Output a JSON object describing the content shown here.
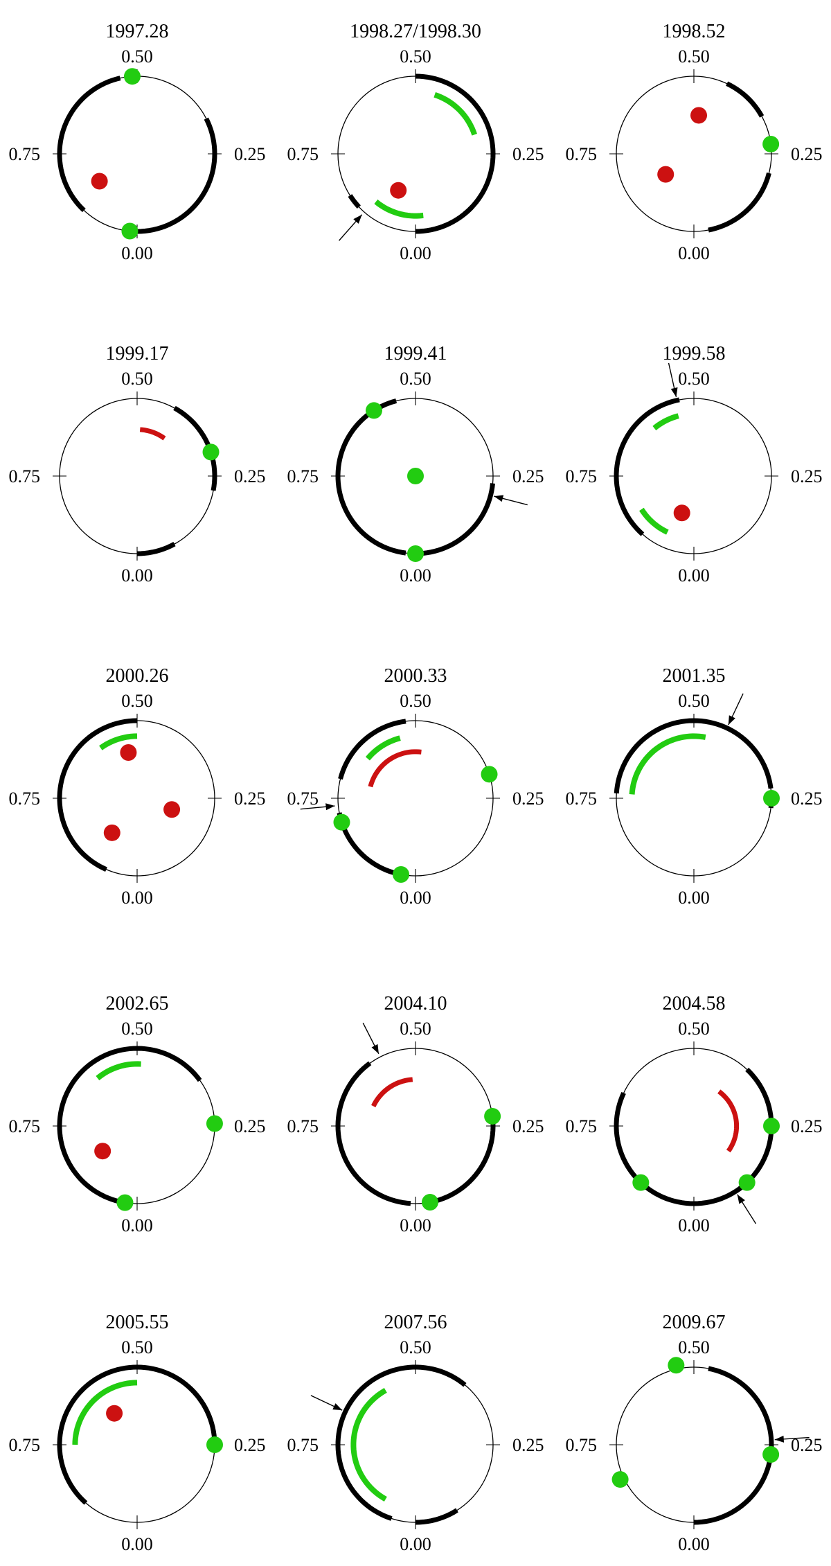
{
  "colors": {
    "ring": "#000000",
    "green": "#22cc11",
    "red": "#cc1111",
    "thin": "#000000"
  },
  "tick_labels": {
    "top": "0.50",
    "bottom": "0.00",
    "left": "0.75",
    "right": "0.25"
  },
  "panels": [
    {
      "title": "1997.28",
      "arcs": [
        [
          0.535,
          0.88
        ],
        [
          0.0,
          0.325
        ]
      ],
      "green_arcs": [],
      "red_arcs": [],
      "green_dots": [
        [
          0.51,
          1.0
        ],
        [
          0.985,
          1.0
        ]
      ],
      "red_dots": [
        [
          0.85,
          0.6
        ]
      ],
      "arrows": []
    },
    {
      "title": "1998.27/1998.30",
      "arcs": [
        [
          0.11,
          0.5
        ],
        [
          0.0,
          0.13
        ],
        [
          0.84,
          0.87
        ]
      ],
      "green_arcs": [
        [
          0.3,
          0.45,
          0.8
        ],
        [
          0.89,
          0.02,
          0.8
        ]
      ],
      "red_arcs": [],
      "green_dots": [],
      "red_dots": [
        [
          0.93,
          0.52
        ]
      ],
      "arrows": [
        0.885
      ]
    },
    {
      "title": "1998.52",
      "arcs": [
        [
          0.33,
          0.43
        ],
        [
          0.03,
          0.21
        ]
      ],
      "green_arcs": [],
      "red_arcs": [],
      "green_dots": [
        [
          0.27,
          1.0
        ]
      ],
      "red_dots": [
        [
          0.48,
          0.5
        ],
        [
          0.85,
          0.45
        ]
      ],
      "arrows": []
    },
    {
      "title": "1999.17",
      "arcs": [
        [
          0.22,
          0.42
        ],
        [
          0.0,
          0.08
        ]
      ],
      "green_arcs": [],
      "red_arcs": [
        [
          0.4,
          0.49,
          0.6
        ]
      ],
      "green_dots": [
        [
          0.3,
          1.0
        ]
      ],
      "red_dots": [],
      "arrows": []
    },
    {
      "title": "1999.41",
      "arcs": [
        [
          0.54,
          0.98
        ],
        [
          0.0,
          0.235
        ]
      ],
      "green_arcs": [],
      "red_arcs": [],
      "green_dots": [
        [
          0.59,
          1.0
        ],
        [
          0.0,
          1.0
        ],
        [
          0.0,
          0.0
        ]
      ],
      "red_dots": [],
      "arrows": [
        0.21
      ]
    },
    {
      "title": "1999.58",
      "arcs": [
        [
          0.53,
          0.885
        ]
      ],
      "green_arcs": [
        [
          0.54,
          0.61,
          0.8
        ],
        [
          0.84,
          0.93,
          0.8
        ]
      ],
      "red_arcs": [],
      "green_dots": [],
      "red_dots": [
        [
          0.95,
          0.5
        ]
      ],
      "arrows": [
        0.535
      ]
    },
    {
      "title": "2000.26",
      "arcs": [
        [
          0.5,
          0.935
        ]
      ],
      "green_arcs": [
        [
          0.5,
          0.6,
          0.8
        ]
      ],
      "red_arcs": [],
      "green_dots": [],
      "red_dots": [
        [
          0.53,
          0.6
        ],
        [
          0.9,
          0.55
        ],
        [
          0.2,
          0.47
        ]
      ],
      "arrows": []
    },
    {
      "title": "2000.33",
      "arcs": [
        [
          0.52,
          0.71
        ],
        [
          0.78,
          0.98
        ]
      ],
      "green_arcs": [
        [
          0.54,
          0.64,
          0.8
        ]
      ],
      "red_arcs": [
        [
          0.48,
          0.71,
          0.6
        ]
      ],
      "green_dots": [
        [
          0.3,
          1.0
        ],
        [
          0.8,
          1.0
        ],
        [
          0.97,
          1.0
        ]
      ],
      "red_dots": [],
      "arrows": [
        0.765
      ]
    },
    {
      "title": "2001.35",
      "arcs": [
        [
          0.23,
          0.25
        ],
        [
          0.27,
          0.74
        ]
      ],
      "green_arcs": [
        [
          0.47,
          0.74,
          0.8
        ]
      ],
      "red_arcs": [],
      "green_dots": [
        [
          0.25,
          1.0
        ]
      ],
      "red_dots": [],
      "arrows": [
        0.43
      ]
    },
    {
      "title": "2002.65",
      "arcs": [
        [
          0.35,
          0.98
        ]
      ],
      "green_arcs": [
        [
          0.49,
          0.61,
          0.8
        ]
      ],
      "red_arcs": [],
      "green_dots": [
        [
          0.255,
          1.0
        ],
        [
          0.975,
          1.0
        ]
      ],
      "red_dots": [
        [
          0.85,
          0.55
        ]
      ],
      "arrows": []
    },
    {
      "title": "2004.10",
      "arcs": [
        [
          0.025,
          0.265
        ],
        [
          0.27,
          0.28
        ],
        [
          0.6,
          0.99
        ]
      ],
      "green_arcs": [],
      "red_arcs": [
        [
          0.51,
          0.68,
          0.6
        ]
      ],
      "green_dots": [
        [
          0.03,
          1.0
        ],
        [
          0.27,
          1.0
        ]
      ],
      "red_dots": [],
      "arrows": [
        0.575
      ]
    },
    {
      "title": "2004.58",
      "arcs": [
        [
          0.0,
          0.38
        ],
        [
          0.68,
          1.0
        ]
      ],
      "green_arcs": [],
      "red_arcs": [
        [
          0.15,
          0.4,
          0.55
        ]
      ],
      "green_dots": [
        [
          0.88,
          1.0
        ],
        [
          0.12,
          1.0
        ],
        [
          0.25,
          1.0
        ]
      ],
      "red_dots": [],
      "arrows": [
        0.09
      ]
    },
    {
      "title": "2005.55",
      "arcs": [
        [
          0.245,
          0.5
        ],
        [
          0.5,
          0.885
        ]
      ],
      "green_arcs": [
        [
          0.5,
          0.75,
          0.8
        ]
      ],
      "red_arcs": [],
      "green_dots": [
        [
          0.25,
          1.0
        ]
      ],
      "red_dots": [
        [
          0.6,
          0.5
        ]
      ],
      "arrows": []
    },
    {
      "title": "2007.56",
      "arcs": [
        [
          0.0,
          0.09
        ],
        [
          0.39,
          0.95
        ]
      ],
      "green_arcs": [
        [
          0.58,
          0.92,
          0.8
        ]
      ],
      "red_arcs": [],
      "green_dots": [],
      "red_dots": [],
      "arrows": [
        0.68
      ]
    },
    {
      "title": "2009.67",
      "arcs": [
        [
          0.0,
          0.47
        ]
      ],
      "green_arcs": [],
      "red_arcs": [],
      "green_dots": [
        [
          0.535,
          1.05
        ],
        [
          0.82,
          1.05
        ],
        [
          0.23,
          1.0
        ]
      ],
      "red_dots": [],
      "arrows": [
        0.26
      ]
    }
  ]
}
